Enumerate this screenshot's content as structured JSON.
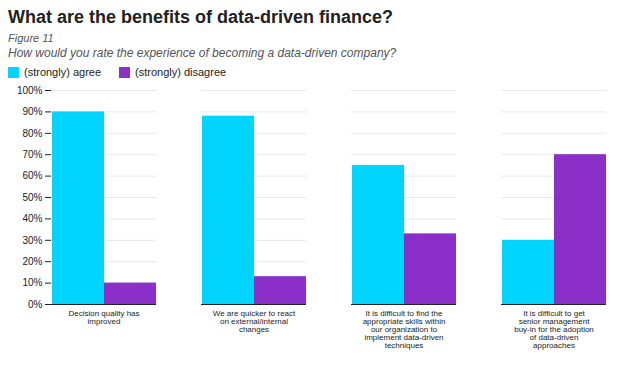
{
  "chart_data": {
    "type": "bar",
    "title": "What are the benefits of data-driven finance?",
    "subtitle": "How would you rate the experience of becoming a data-driven company?",
    "annotations": [
      "Figure 11"
    ],
    "categories": [
      "Decision quality has\nimproved",
      "We are quicker to react\non external/internal\nchanges",
      "It is difficult to find the\nappropriate skills within\nour organization to\nimplement data-driven\ntechniques",
      "It is difficult to get\nsenior management\nbuy-in for the adoption\nof data-driven\napproaches"
    ],
    "series": [
      {
        "name": "(strongly) agree",
        "color": "#00D4FF",
        "values": [
          90,
          88,
          65,
          30
        ]
      },
      {
        "name": "(strongly) disagree",
        "color": "#8B2FC9",
        "values": [
          10,
          13,
          33,
          70
        ]
      }
    ],
    "ylim": [
      0,
      100
    ],
    "yticks": [
      {
        "value": 0,
        "label": "0%"
      },
      {
        "value": 10,
        "label": "10%"
      },
      {
        "value": 20,
        "label": "20%"
      },
      {
        "value": 30,
        "label": "30%"
      },
      {
        "value": 40,
        "label": "40%"
      },
      {
        "value": 50,
        "label": "50%"
      },
      {
        "value": 60,
        "label": "60%"
      },
      {
        "value": 70,
        "label": "70%"
      },
      {
        "value": 80,
        "label": "80%"
      },
      {
        "value": 90,
        "label": "90%"
      },
      {
        "value": 100,
        "label": "100%"
      }
    ],
    "grid": true,
    "legend": "top"
  }
}
